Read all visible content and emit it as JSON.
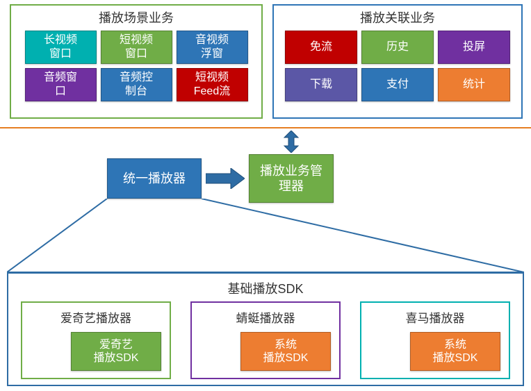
{
  "colors": {
    "green": "#70ad47",
    "blue": "#2e75b6",
    "purple": "#7030a0",
    "red": "#c00000",
    "teal": "#00b0b0",
    "indigo": "#5b57a6",
    "orange": "#ed7d31",
    "steel": "#2e6ca4",
    "hr": "#e67e22"
  },
  "top_left": {
    "border": "#70ad47",
    "title": "播放场景业务",
    "cells": [
      {
        "label": "长视频\n窗口",
        "bg": "#00b0b0"
      },
      {
        "label": "短视频\n窗口",
        "bg": "#70ad47"
      },
      {
        "label": "音视频\n浮窗",
        "bg": "#2e75b6"
      },
      {
        "label": "音频窗\n口",
        "bg": "#7030a0"
      },
      {
        "label": "音频控\n制台",
        "bg": "#2e75b6"
      },
      {
        "label": "短视频\nFeed流",
        "bg": "#c00000"
      }
    ]
  },
  "top_right": {
    "border": "#2e75b6",
    "title": "播放关联业务",
    "cells": [
      {
        "label": "免流",
        "bg": "#c00000"
      },
      {
        "label": "历史",
        "bg": "#70ad47"
      },
      {
        "label": "投屏",
        "bg": "#7030a0"
      },
      {
        "label": "下载",
        "bg": "#5b57a6"
      },
      {
        "label": "支付",
        "bg": "#2e75b6"
      },
      {
        "label": "统计",
        "bg": "#ed7d31"
      }
    ]
  },
  "middle": {
    "left": {
      "label": "统一播放器",
      "bg": "#2e75b6"
    },
    "right": {
      "label": "播放业务管\n理器",
      "bg": "#70ad47"
    }
  },
  "bottom": {
    "border": "#2e6ca4",
    "title": "基础播放SDK",
    "sdks": [
      {
        "border": "#70ad47",
        "title": "爱奇艺播放器",
        "inner": "爱奇艺\n播放SDK",
        "inner_bg": "#70ad47"
      },
      {
        "border": "#7030a0",
        "title": "蜻蜓播放器",
        "inner": "系统\n播放SDK",
        "inner_bg": "#ed7d31"
      },
      {
        "border": "#00b0b0",
        "title": "喜马播放器",
        "inner": "系统\n播放SDK",
        "inner_bg": "#ed7d31"
      }
    ]
  }
}
